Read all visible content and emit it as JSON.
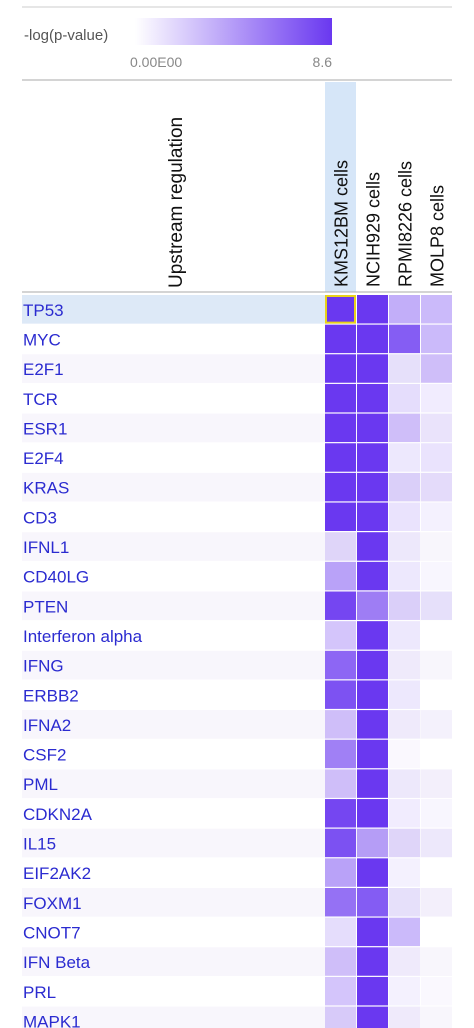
{
  "chart_data": {
    "type": "heatmap",
    "colorbar_label": "-log(p-value)",
    "colorbar_range": [
      0,
      8.6
    ],
    "colorbar_ticks": [
      {
        "value": 0,
        "label": "0.00E00"
      },
      8.6
    ],
    "colors": [
      "#ffffff",
      "#6a38f0"
    ],
    "y_label": "Upstream regulation",
    "categories": [
      "KMS12BM cells",
      "NCIH929 cells",
      "RPMI8226 cells",
      "MOLP8 cells"
    ],
    "rows": [
      "TP53",
      "MYC",
      "E2F1",
      "TCR",
      "ESR1",
      "E2F4",
      "KRAS",
      "CD3",
      "IFNL1",
      "CD40LG",
      "PTEN",
      "Interferon alpha",
      "IFNG",
      "ERBB2",
      "IFNA2",
      "CSF2",
      "PML",
      "CDKN2A",
      "IL15",
      "EIF2AK2",
      "FOXM1",
      "CNOT7",
      "IFN Beta",
      "PRL",
      "MAPK1"
    ],
    "values": [
      [
        8.6,
        8.6,
        3.5,
        3
      ],
      [
        8.6,
        8.6,
        7,
        3
      ],
      [
        8.6,
        8.6,
        1,
        2.5
      ],
      [
        8.6,
        8.6,
        1.5,
        0.8
      ],
      [
        8.6,
        8.6,
        2.5,
        0.8
      ],
      [
        8.6,
        8.6,
        1,
        1.2
      ],
      [
        8.6,
        8.6,
        1.8,
        1.2
      ],
      [
        8.6,
        8.6,
        1.2,
        0.6
      ],
      [
        1.5,
        8.6,
        0.6,
        0
      ],
      [
        4,
        8.6,
        1,
        0.4
      ],
      [
        8,
        5.5,
        1.8,
        1
      ],
      [
        2.5,
        8.6,
        1,
        0
      ],
      [
        6.5,
        8.6,
        0.5,
        0
      ],
      [
        7.5,
        8.6,
        1,
        0
      ],
      [
        2.5,
        8.6,
        0.5,
        0.2
      ],
      [
        5.5,
        8.6,
        0.3,
        0
      ],
      [
        2.5,
        8.6,
        0.6,
        0.3
      ],
      [
        8,
        8.6,
        0.8,
        0.4
      ],
      [
        7.5,
        4,
        1.5,
        0.6
      ],
      [
        4,
        8.6,
        0.6,
        0
      ],
      [
        6,
        7,
        1,
        0.3
      ],
      [
        1.5,
        8.6,
        3,
        0
      ],
      [
        2.5,
        8.6,
        0.5,
        0
      ],
      [
        2.5,
        8.6,
        0.6,
        0.3
      ],
      [
        2,
        8.6,
        0.5,
        0
      ]
    ]
  }
}
